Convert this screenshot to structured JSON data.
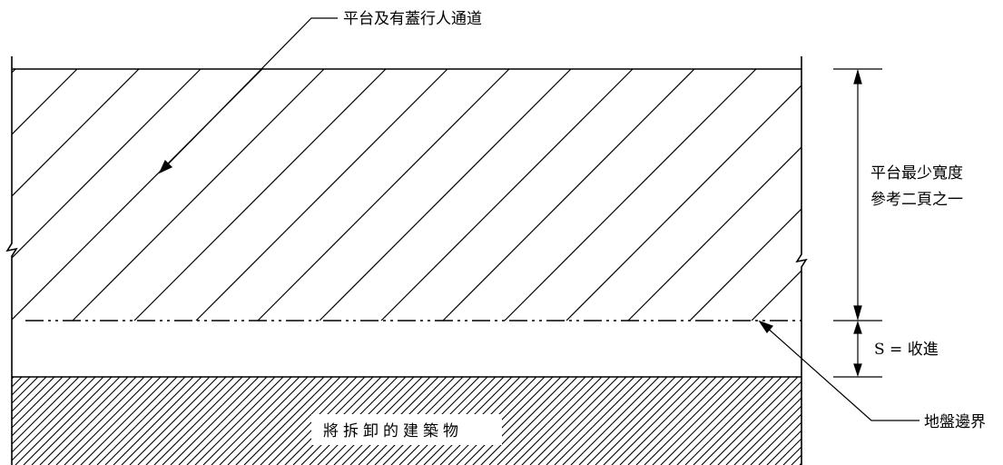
{
  "labels": {
    "podium_walkway": "平台及有蓋行人通道",
    "min_width_line1": "平台最少寬度",
    "min_width_line2": "參考二頁之一",
    "setback": "S = 收進",
    "site_boundary": "地盤邊界",
    "demolish_building": "將拆卸的建築物"
  }
}
